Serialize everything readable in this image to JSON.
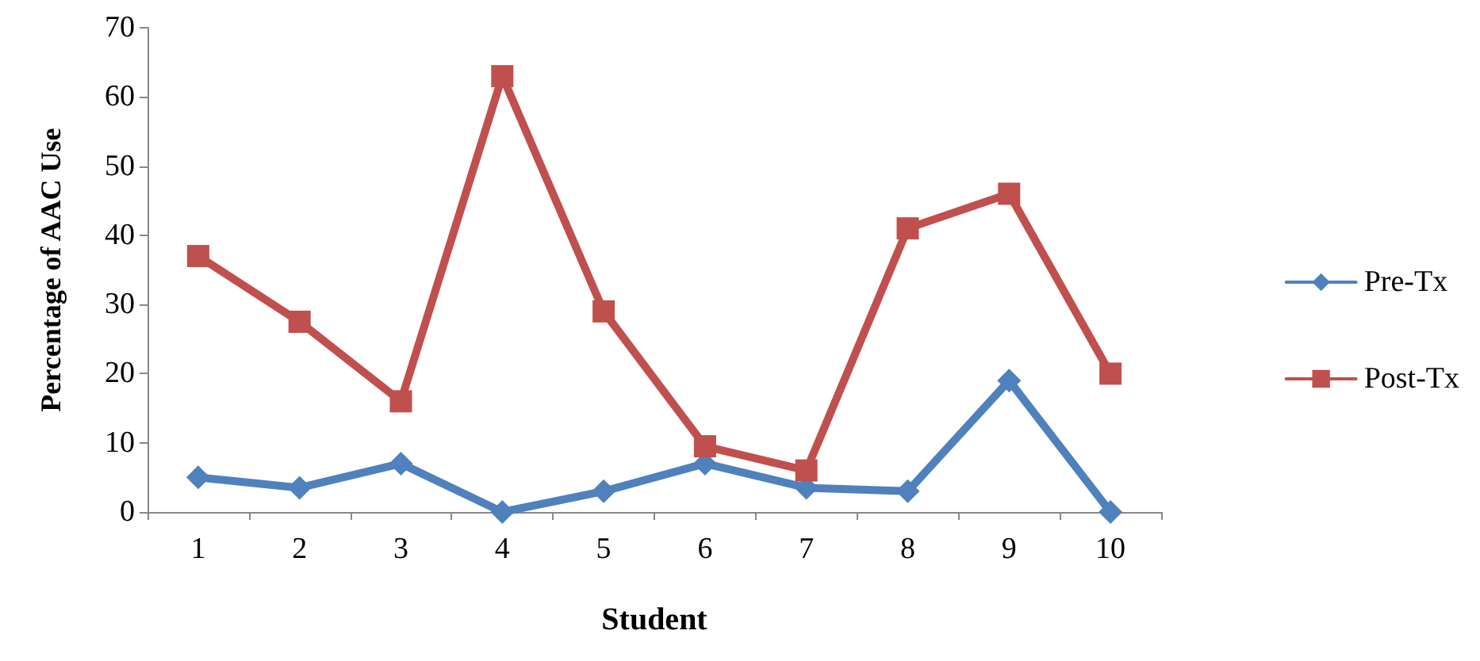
{
  "chart_data": {
    "type": "line",
    "xlabel": "Student",
    "ylabel": "Percentage of AAC Use",
    "categories": [
      "1",
      "2",
      "3",
      "4",
      "5",
      "6",
      "7",
      "8",
      "9",
      "10"
    ],
    "series": [
      {
        "name": "Pre-Tx",
        "color": "#4f81bd",
        "marker": "diamond",
        "values": [
          5,
          3.5,
          7,
          0,
          3,
          7,
          3.5,
          3,
          19,
          0
        ]
      },
      {
        "name": "Post-Tx",
        "color": "#c0504d",
        "marker": "square",
        "values": [
          37,
          27.5,
          16,
          63,
          29,
          9.5,
          6,
          41,
          46,
          20
        ]
      }
    ],
    "ylim": [
      0,
      70
    ],
    "yticks": [
      0,
      10,
      20,
      30,
      40,
      50,
      60,
      70
    ],
    "grid": false,
    "legend": "right",
    "line_style": "solid"
  }
}
